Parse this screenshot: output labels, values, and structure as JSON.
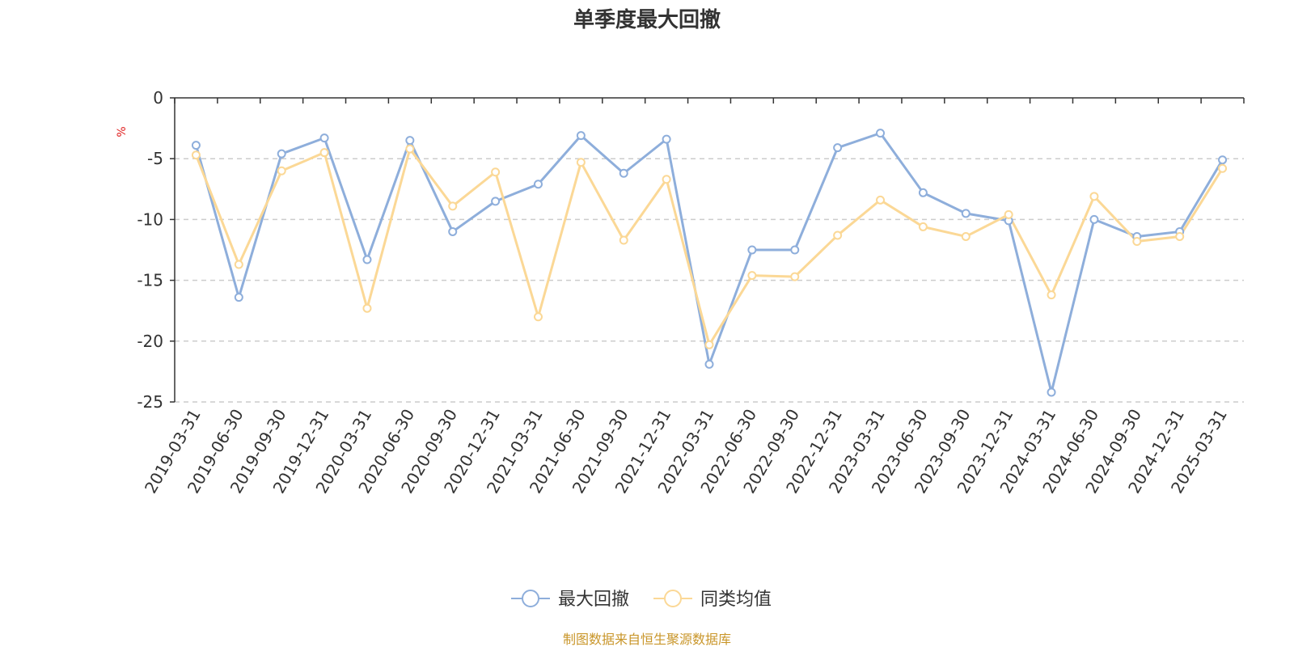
{
  "chart_data": {
    "type": "line",
    "title": "单季度最大回撤",
    "ylabel": "%",
    "ylim": [
      -25,
      0
    ],
    "yticks": [
      0,
      -5,
      -10,
      -15,
      -20,
      -25
    ],
    "ytick_labels": [
      "0",
      "-5",
      "-10",
      "-15",
      "-20",
      "-25"
    ],
    "grid": true,
    "legend_position": "bottom",
    "categories": [
      "2019-03-31",
      "2019-06-30",
      "2019-09-30",
      "2019-12-31",
      "2020-03-31",
      "2020-06-30",
      "2020-09-30",
      "2020-12-31",
      "2021-03-31",
      "2021-06-30",
      "2021-09-30",
      "2021-12-31",
      "2022-03-31",
      "2022-06-30",
      "2022-09-30",
      "2022-12-31",
      "2023-03-31",
      "2023-06-30",
      "2023-09-30",
      "2023-12-31",
      "2024-03-31",
      "2024-06-30",
      "2024-09-30",
      "2024-12-31",
      "2025-03-31"
    ],
    "series": [
      {
        "name": "最大回撤",
        "color": "#8eaedb",
        "values": [
          -3.9,
          -16.4,
          -4.6,
          -3.3,
          -13.3,
          -3.5,
          -11.0,
          -8.5,
          -7.1,
          -3.1,
          -6.2,
          -3.4,
          -21.9,
          -12.5,
          -12.5,
          -4.1,
          -2.9,
          -7.8,
          -9.5,
          -10.1,
          -24.2,
          -10.0,
          -11.4,
          -11.0,
          -5.1
        ]
      },
      {
        "name": "同类均值",
        "color": "#fbd896",
        "values": [
          -4.7,
          -13.7,
          -6.0,
          -4.5,
          -17.3,
          -4.2,
          -8.9,
          -6.1,
          -18.0,
          -5.3,
          -11.7,
          -6.7,
          -20.3,
          -14.6,
          -14.7,
          -11.3,
          -8.4,
          -10.6,
          -11.4,
          -9.6,
          -16.2,
          -8.1,
          -11.8,
          -11.4,
          -5.8
        ]
      }
    ],
    "source_note": "制图数据来自恒生聚源数据库"
  }
}
